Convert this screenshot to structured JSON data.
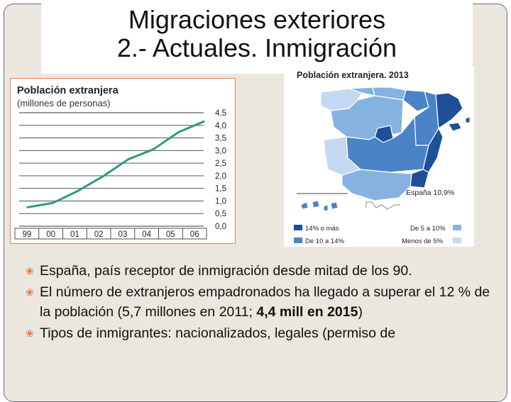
{
  "title": {
    "line1": "Migraciones exteriores",
    "line2": "2.- Actuales. Inmigración"
  },
  "chart_data": {
    "type": "line",
    "title": "Población extranjera",
    "subtitle": "(millones de personas)",
    "categories": [
      "99",
      "00",
      "01",
      "02",
      "03",
      "04",
      "05",
      "06"
    ],
    "y_ticks": [
      "4,5",
      "4,0",
      "3,5",
      "3,0",
      "2,5",
      "2,0",
      "1,5",
      "1,0",
      "0,5",
      "0,0"
    ],
    "ylim": [
      0,
      4.5
    ],
    "grid": true,
    "series": [
      {
        "values": [
          0.75,
          0.92,
          1.4,
          1.98,
          2.65,
          3.05,
          3.73,
          4.15
        ]
      }
    ],
    "line_color": "#2f9a82"
  },
  "map": {
    "title": "Población extranjera. 2013",
    "national_label": "España 10,9%",
    "legend": [
      {
        "label": "14% o más",
        "color": "#1f4f98"
      },
      {
        "label": "De 10 a 14%",
        "color": "#4a83c6"
      },
      {
        "label": "De 5 a 10%",
        "color": "#86b2e1"
      },
      {
        "label": "Menos de 5%",
        "color": "#c4d9f1"
      }
    ]
  },
  "bullets": [
    {
      "text": "España, país receptor de inmigración desde mitad de los 90."
    },
    {
      "text": "El número de extranjeros empadronados ha llegado a superar el 12 % de la población (5,7 millones en 2011; ",
      "bold": "4,4 mill en 2015",
      "tail": ")"
    },
    {
      "text": "Tipos de inmigrantes: nacionalizados, legales (permiso de"
    }
  ]
}
